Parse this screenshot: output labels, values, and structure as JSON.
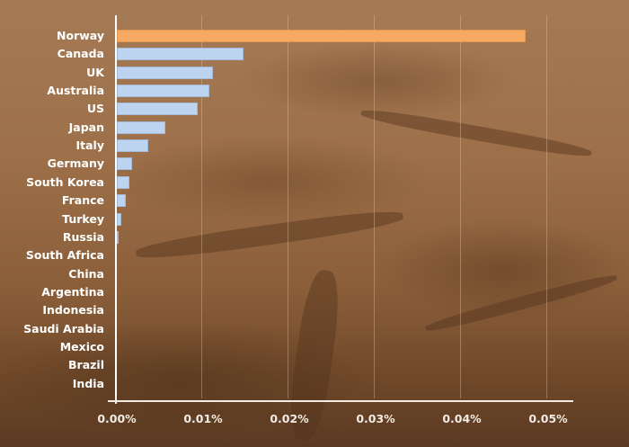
{
  "chart_data": {
    "type": "bar",
    "orientation": "horizontal",
    "title": "",
    "xlabel": "",
    "ylabel": "",
    "categories": [
      "Norway",
      "Canada",
      "UK",
      "Australia",
      "US",
      "Japan",
      "Italy",
      "Germany",
      "South Korea",
      "France",
      "Turkey",
      "Russia",
      "South Africa",
      "China",
      "Argentina",
      "Indonesia",
      "Saudi Arabia",
      "Mexico",
      "Brazil",
      "India"
    ],
    "values": [
      0.0476,
      0.0149,
      0.0114,
      0.0109,
      0.0096,
      0.0058,
      0.0039,
      0.002,
      0.0017,
      0.0012,
      0.0007,
      0.0004,
      0.0002,
      0.0001,
      0.0,
      0.0,
      0.0,
      0.0,
      0.0,
      0.0
    ],
    "value_unit": "%",
    "highlighted_category": "Norway",
    "xlim": [
      0,
      0.05
    ],
    "x_ticks": [
      "0.00%",
      "0.01%",
      "0.02%",
      "0.03%",
      "0.04%",
      "0.05%"
    ],
    "grid": "vertical gridlines at each tick",
    "legend": "none",
    "colors": {
      "bar": "#bcd4f0",
      "highlight": "#f7a862",
      "text": "#ffffff",
      "axis": "#ffffff"
    },
    "background": "photo of cracked dry earth (brown)"
  }
}
